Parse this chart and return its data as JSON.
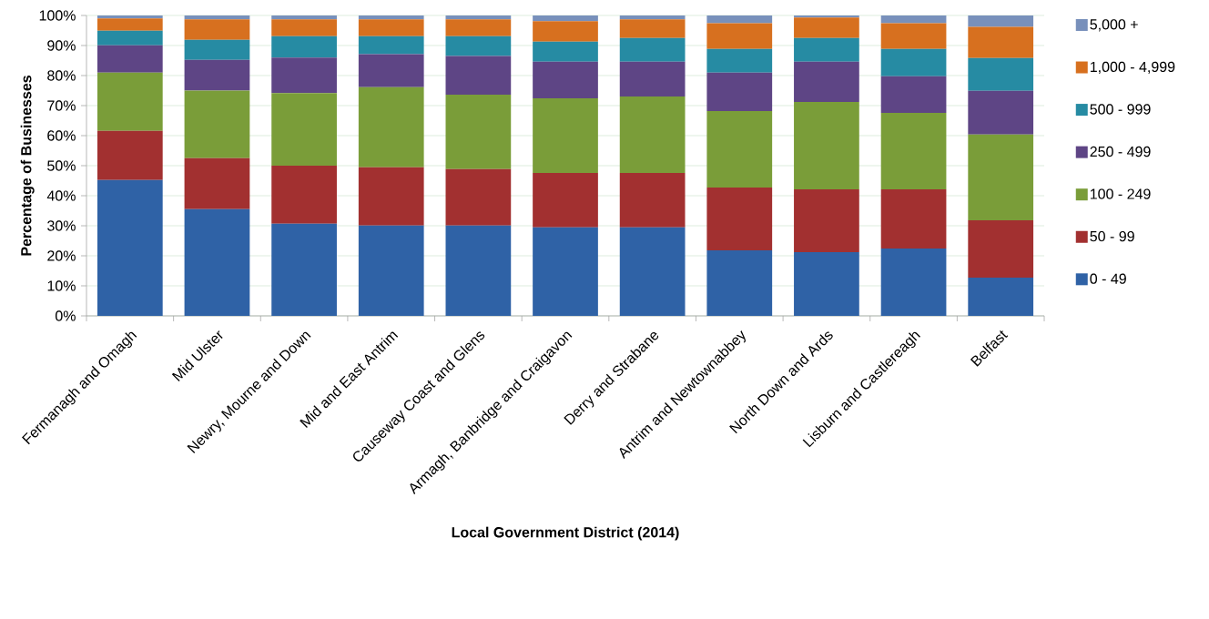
{
  "chart_data": {
    "type": "bar",
    "stacked": true,
    "xlabel": "Local Government District (2014)",
    "ylabel": "Percentage of Businesses",
    "categories": [
      "Fermanagh and Omagh",
      "Mid Ulster",
      "Newry, Mourne and Down",
      "Mid and East Antrim",
      "Causeway Coast and Glens",
      "Armagh, Banbridge and Craigavon",
      "Derry and Strabane",
      "Antrim and Newtownabbey",
      "North Down and Ards",
      "Lisburn and Castlereagh",
      "Belfast"
    ],
    "series": [
      {
        "name": "0 - 49",
        "color": "#2f62a6",
        "values": [
          45.2,
          35.5,
          30.7,
          30.1,
          30.1,
          29.5,
          29.5,
          21.8,
          21.2,
          22.4,
          12.7
        ]
      },
      {
        "name": "50 - 99",
        "color": "#a23030",
        "values": [
          16.4,
          17.0,
          19.3,
          19.4,
          18.8,
          18.1,
          18.1,
          20.9,
          20.9,
          19.7,
          19.1
        ]
      },
      {
        "name": "100 - 249",
        "color": "#7a9d39",
        "values": [
          19.4,
          22.5,
          24.2,
          26.6,
          24.7,
          24.8,
          25.4,
          25.5,
          29.1,
          25.5,
          28.6
        ]
      },
      {
        "name": "250 - 499",
        "color": "#5e4585",
        "values": [
          9.1,
          10.2,
          11.8,
          11.0,
          12.9,
          12.2,
          11.6,
          12.8,
          13.4,
          12.2,
          14.5
        ]
      },
      {
        "name": "500 - 999",
        "color": "#268ba3",
        "values": [
          4.8,
          6.7,
          7.1,
          6.0,
          6.6,
          6.7,
          7.9,
          7.9,
          7.9,
          9.1,
          10.9
        ]
      },
      {
        "name": "1,000 - 4,999",
        "color": "#d7701f",
        "values": [
          4.1,
          6.8,
          5.6,
          5.6,
          5.6,
          6.8,
          6.2,
          8.5,
          6.8,
          8.5,
          10.4
        ]
      },
      {
        "name": "5,000 +",
        "color": "#7890bb",
        "values": [
          1.0,
          1.3,
          1.3,
          1.3,
          1.3,
          1.9,
          1.3,
          2.6,
          0.7,
          2.6,
          3.8
        ]
      }
    ],
    "ylim": [
      0,
      100
    ],
    "yticks": [
      {
        "value": 0,
        "label": "0%"
      },
      {
        "value": 10,
        "label": "10%"
      },
      {
        "value": 20,
        "label": "20%"
      },
      {
        "value": 30,
        "label": "30%"
      },
      {
        "value": 40,
        "label": "40%"
      },
      {
        "value": 50,
        "label": "50%"
      },
      {
        "value": 60,
        "label": "60%"
      },
      {
        "value": 70,
        "label": "70%"
      },
      {
        "value": 80,
        "label": "80%"
      },
      {
        "value": 90,
        "label": "90%"
      },
      {
        "value": 100,
        "label": "100%"
      }
    ],
    "grid": "y",
    "legend": "right"
  }
}
